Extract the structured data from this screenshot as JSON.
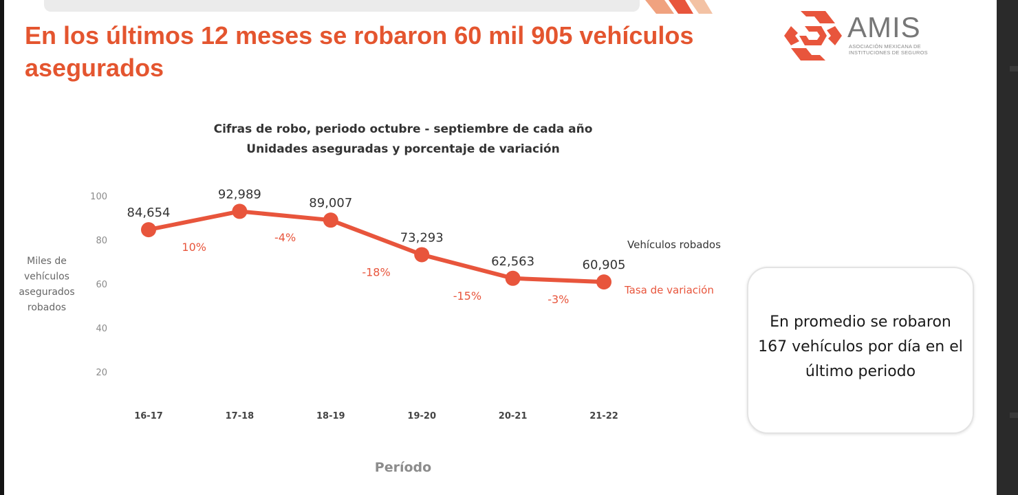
{
  "slide": {
    "title": "En los últimos 12 meses se robaron 60 mil 905 vehículos asegurados",
    "logo": {
      "name": "AMIS",
      "subtitle_line1": "Asociación Mexicana de",
      "subtitle_line2": "Instituciones de Seguros"
    },
    "callout": "En promedio se robaron 167 vehículos por día en el último periodo"
  },
  "colors": {
    "accent": "#e4552f",
    "series": "#e8553c",
    "axis_text": "#8a8a8a",
    "label_dark": "#333333"
  },
  "chart_data": {
    "type": "line",
    "title": "Cifras de robo, periodo octubre - septiembre de cada año",
    "subtitle": "Unidades aseguradas y porcentaje de variación",
    "xlabel": "Período",
    "ylabel": [
      "Miles de",
      "vehículos",
      "asegurados",
      "robados"
    ],
    "categories": [
      "16-17",
      "17-18",
      "18-19",
      "19-20",
      "20-21",
      "21-22"
    ],
    "yticks": [
      20,
      40,
      60,
      80,
      100
    ],
    "ylim": [
      0,
      100
    ],
    "series": [
      {
        "name": "Vehículos robados",
        "values": [
          84.654,
          92.989,
          89.007,
          73.293,
          62.563,
          60.905
        ],
        "labels": [
          "84,654",
          "92,989",
          "89,007",
          "73,293",
          "62,563",
          "60,905"
        ]
      }
    ],
    "variation": {
      "name": "Tasa de variación",
      "labels": [
        "10%",
        "-4%",
        "-18%",
        "-15%",
        "-3%"
      ]
    },
    "grid": false
  }
}
